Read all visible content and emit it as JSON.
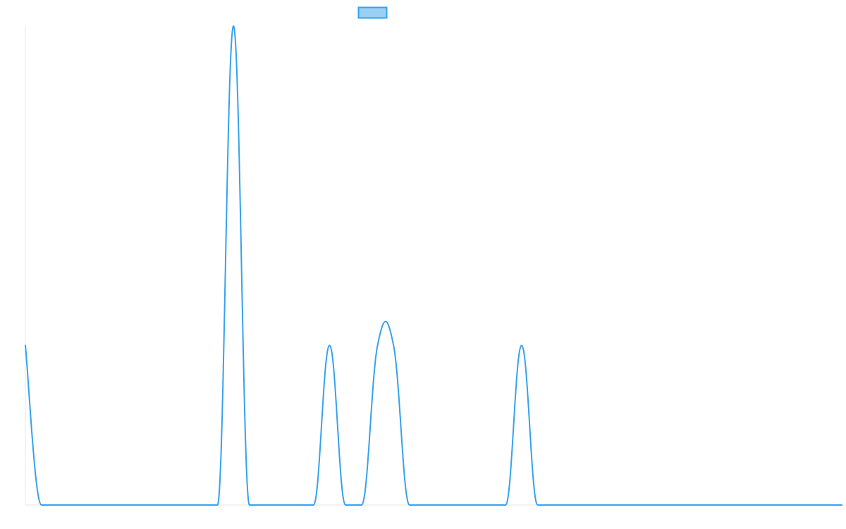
{
  "chart_data": {
    "type": "line",
    "title": "",
    "xlabel": "",
    "ylabel": "",
    "grid": false,
    "legend": {
      "placement": "top-center",
      "entries": [
        {
          "name": "",
          "swatch_fill": "#9ad0f5",
          "swatch_stroke": "#36a2eb"
        }
      ]
    },
    "colors": {
      "line": "#36a2eb",
      "axis": "#e5e5e5"
    },
    "x": [
      0,
      1,
      2,
      3,
      4,
      5,
      6,
      7,
      8,
      9,
      10,
      11,
      12,
      13,
      14,
      15,
      16,
      17,
      18,
      19,
      20,
      21,
      22,
      23,
      24,
      25,
      26,
      27,
      28,
      29,
      30,
      31,
      32,
      33,
      34,
      35,
      36,
      37,
      38,
      39,
      40,
      41,
      42,
      43,
      44,
      45,
      46,
      47,
      48,
      49,
      50,
      51
    ],
    "xlim": [
      0,
      51
    ],
    "ylim": [
      0,
      3
    ],
    "series": [
      {
        "name": "",
        "values": [
          1,
          0,
          0,
          0,
          0,
          0,
          0,
          0,
          0,
          0,
          0,
          0,
          0,
          3,
          0,
          0,
          0,
          0,
          0,
          1,
          0,
          0,
          1,
          1,
          0,
          0,
          0,
          0,
          0,
          0,
          0,
          1,
          0,
          0,
          0,
          0,
          0,
          0,
          0,
          0,
          0,
          0,
          0,
          0,
          0,
          0,
          0,
          0,
          0,
          0,
          0,
          0
        ]
      }
    ]
  }
}
